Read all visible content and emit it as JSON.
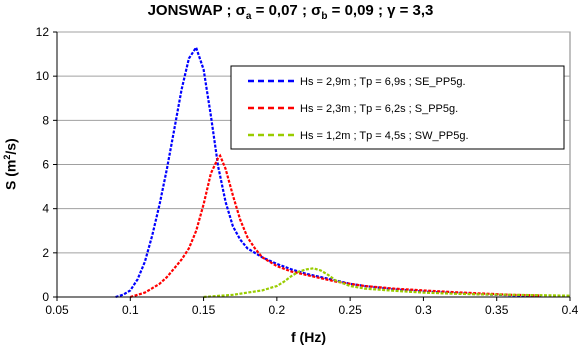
{
  "title": {
    "prefix": "JONSWAP ; ",
    "sigma_a_symbol": "σ",
    "sigma_a_sub": "a",
    "sigma_a_value": " = 0,07 ; ",
    "sigma_b_symbol": "σ",
    "sigma_b_sub": "b",
    "sigma_b_value": " = 0,09 ; ",
    "gamma": "γ = 3,3"
  },
  "ylabel": {
    "main": "S (m",
    "sup": "2",
    "end": "/s)"
  },
  "xlabel": "f (Hz)",
  "chart_data": {
    "type": "line",
    "xlim": [
      0.05,
      0.4
    ],
    "ylim": [
      0,
      12
    ],
    "x_ticks": [
      "0.05",
      "0.1",
      "0.15",
      "0.2",
      "0.25",
      "0.3",
      "0.35",
      "0.4"
    ],
    "y_ticks": [
      "0",
      "2",
      "4",
      "6",
      "8",
      "10",
      "12"
    ],
    "grid": "horizontal",
    "legend_position": "top-right",
    "series": [
      {
        "name": "Hs = 2,9m ; Tp = 6,9s ; SE_PP5g.",
        "color": "#0000ff",
        "style": "dashed",
        "x": [
          0.09,
          0.095,
          0.1,
          0.105,
          0.11,
          0.115,
          0.12,
          0.125,
          0.13,
          0.135,
          0.14,
          0.1449,
          0.15,
          0.155,
          0.16,
          0.165,
          0.17,
          0.175,
          0.18,
          0.19,
          0.2,
          0.21,
          0.22,
          0.23,
          0.24,
          0.25,
          0.26,
          0.28,
          0.3,
          0.32,
          0.34,
          0.36,
          0.38
        ],
        "y": [
          0,
          0.1,
          0.3,
          0.8,
          1.6,
          2.8,
          4.2,
          5.8,
          7.6,
          9.4,
          10.8,
          11.3,
          10.3,
          8.2,
          5.9,
          4.3,
          3.2,
          2.6,
          2.2,
          1.8,
          1.5,
          1.25,
          1.05,
          0.9,
          0.75,
          0.6,
          0.5,
          0.35,
          0.25,
          0.18,
          0.12,
          0.08,
          0.05
        ]
      },
      {
        "name": "Hs = 2,3m ; Tp = 6,2s ; S_PP5g.",
        "color": "#ff0000",
        "style": "dashed",
        "x": [
          0.1,
          0.105,
          0.11,
          0.115,
          0.12,
          0.125,
          0.13,
          0.135,
          0.14,
          0.145,
          0.15,
          0.155,
          0.16,
          0.1613,
          0.165,
          0.17,
          0.175,
          0.18,
          0.185,
          0.19,
          0.2,
          0.21,
          0.22,
          0.23,
          0.24,
          0.25,
          0.26,
          0.28,
          0.3,
          0.32,
          0.34,
          0.36,
          0.38
        ],
        "y": [
          0,
          0.1,
          0.2,
          0.4,
          0.6,
          0.9,
          1.3,
          1.7,
          2.2,
          3.0,
          4.2,
          5.6,
          6.3,
          6.4,
          5.8,
          4.6,
          3.5,
          2.7,
          2.2,
          1.8,
          1.4,
          1.15,
          1.0,
          0.85,
          0.7,
          0.6,
          0.5,
          0.38,
          0.3,
          0.22,
          0.16,
          0.1,
          0.07
        ]
      },
      {
        "name": "Hs = 1,2m ; Tp = 4,5s ; SW_PP5g.",
        "color": "#99cc00",
        "style": "dashed",
        "x": [
          0.15,
          0.16,
          0.17,
          0.18,
          0.19,
          0.2,
          0.205,
          0.21,
          0.215,
          0.22,
          0.225,
          0.23,
          0.235,
          0.24,
          0.25,
          0.26,
          0.28,
          0.3,
          0.32,
          0.34,
          0.36,
          0.38,
          0.4
        ],
        "y": [
          0,
          0.05,
          0.1,
          0.2,
          0.3,
          0.5,
          0.7,
          0.95,
          1.15,
          1.25,
          1.3,
          1.2,
          1.0,
          0.75,
          0.5,
          0.38,
          0.28,
          0.2,
          0.15,
          0.12,
          0.1,
          0.08,
          0.06
        ]
      }
    ]
  }
}
